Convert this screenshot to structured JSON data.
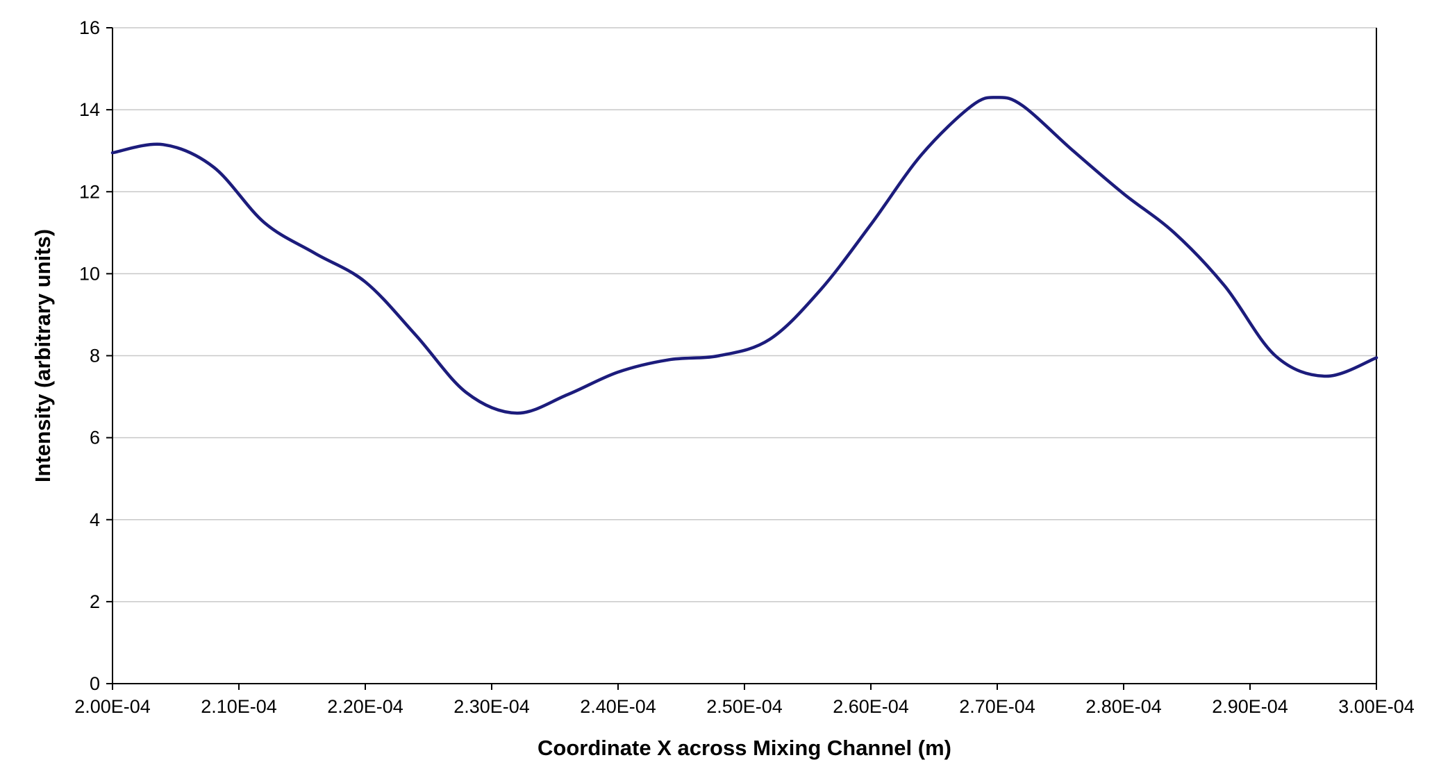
{
  "chart_data": {
    "type": "line",
    "title": "",
    "xlabel": "Coordinate X across Mixing Channel (m)",
    "ylabel": "Intensity (arbitrary units)",
    "xlim": [
      0.0002,
      0.0003
    ],
    "ylim": [
      0,
      16
    ],
    "x_ticks": [
      0.0002,
      0.00021,
      0.00022,
      0.00023,
      0.00024,
      0.00025,
      0.00026,
      0.00027,
      0.00028,
      0.00029,
      0.0003
    ],
    "x_tick_labels": [
      "2.00E-04",
      "2.10E-04",
      "2.20E-04",
      "2.30E-04",
      "2.40E-04",
      "2.50E-04",
      "2.60E-04",
      "2.70E-04",
      "2.80E-04",
      "2.90E-04",
      "3.00E-04"
    ],
    "y_ticks": [
      0,
      2,
      4,
      6,
      8,
      10,
      12,
      14,
      16
    ],
    "y_tick_labels": [
      "0",
      "2",
      "4",
      "6",
      "8",
      "10",
      "12",
      "14",
      "16"
    ],
    "grid": "horizontal",
    "legend": "none",
    "series": [
      {
        "color": "#1c1c7c",
        "x": [
          0.0002,
          0.000204,
          0.000208,
          0.000212,
          0.000216,
          0.00022,
          0.000224,
          0.000228,
          0.000232,
          0.000236,
          0.00024,
          0.000244,
          0.000248,
          0.000252,
          0.000256,
          0.00026,
          0.000264,
          0.000268,
          0.00027,
          0.000272,
          0.000276,
          0.00028,
          0.000284,
          0.000288,
          0.000292,
          0.000296,
          0.0003
        ],
        "y": [
          12.95,
          13.15,
          12.6,
          11.25,
          10.5,
          9.8,
          8.5,
          7.1,
          6.6,
          7.05,
          7.6,
          7.9,
          8.0,
          8.4,
          9.6,
          11.2,
          12.9,
          14.1,
          14.3,
          14.1,
          13.0,
          11.95,
          11.0,
          9.7,
          8.0,
          7.5,
          7.95
        ]
      }
    ]
  }
}
